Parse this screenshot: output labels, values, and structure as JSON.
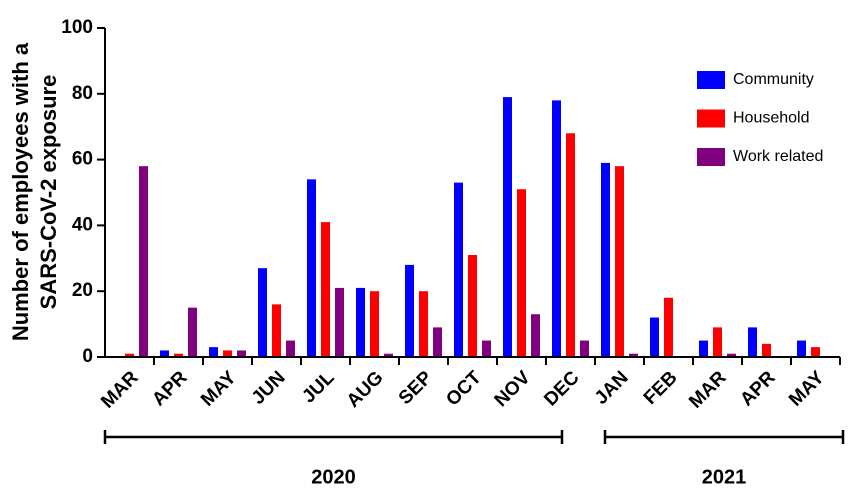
{
  "chart_data": {
    "type": "bar",
    "y_label": [
      "Number of  employees with a",
      "SARS-CoV-2 exposure"
    ],
    "categories": [
      "MAR",
      "APR",
      "MAY",
      "JUN",
      "JUL",
      "AUG",
      "SEP",
      "OCT",
      "NOV",
      "DEC",
      "JAN",
      "FEB",
      "MAR",
      "APR",
      "MAY"
    ],
    "series": [
      {
        "name": "Community",
        "color": "#0000ff",
        "values": [
          0,
          2,
          3,
          27,
          54,
          21,
          28,
          53,
          79,
          78,
          59,
          12,
          5,
          9,
          5
        ]
      },
      {
        "name": "Household",
        "color": "#ff0000",
        "values": [
          1,
          1,
          2,
          16,
          41,
          20,
          20,
          31,
          51,
          68,
          58,
          18,
          9,
          4,
          3
        ]
      },
      {
        "name": "Work related",
        "color": "#800080",
        "values": [
          58,
          15,
          2,
          5,
          21,
          1,
          9,
          5,
          13,
          5,
          1,
          0,
          1,
          0,
          0
        ]
      }
    ],
    "year_groups": [
      "2020",
      "2021"
    ],
    "ylim": [
      0,
      100
    ],
    "yticks": [
      0,
      20,
      40,
      60,
      80,
      100
    ],
    "legend": "upper right"
  }
}
